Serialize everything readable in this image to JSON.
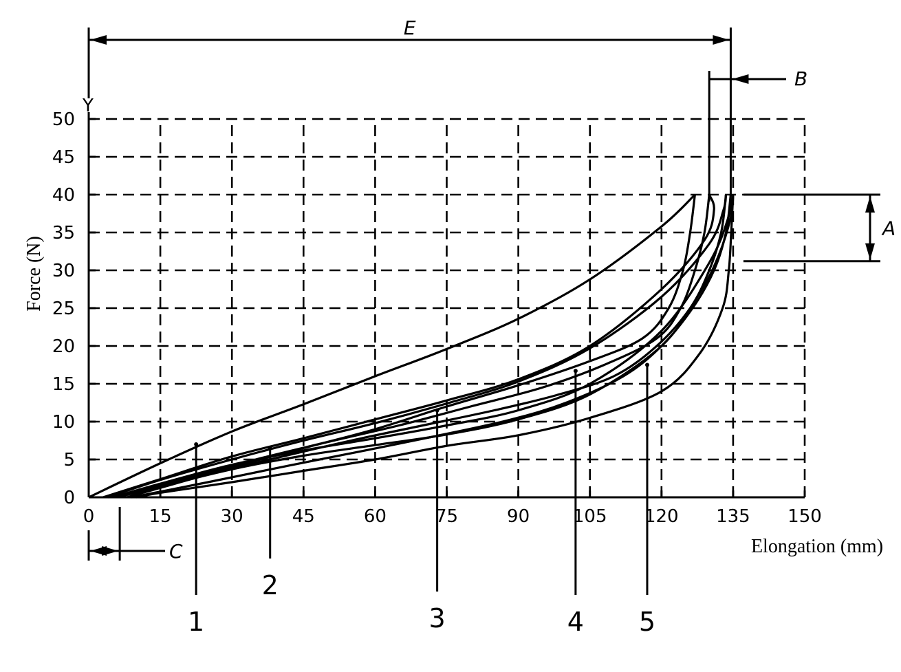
{
  "chart_data": {
    "type": "line",
    "title": "",
    "xlabel": "Elongation (mm)",
    "ylabel": "Force (N)",
    "y_axis_letter": "Y",
    "xlim": [
      0,
      150
    ],
    "ylim": [
      0,
      50
    ],
    "x_ticks": [
      "0",
      "15",
      "30",
      "45",
      "60",
      "75",
      "90",
      "105",
      "120",
      "135",
      "150"
    ],
    "y_ticks": [
      "0",
      "5",
      "10",
      "15",
      "20",
      "25",
      "30",
      "35",
      "40",
      "45",
      "50"
    ],
    "grid": true,
    "legend": "none",
    "series": [
      {
        "label": "1",
        "callout_at": [
          22.5,
          7
        ],
        "loading": [
          [
            0,
            0
          ],
          [
            15,
            4.5
          ],
          [
            30,
            8.7
          ],
          [
            45,
            12.3
          ],
          [
            60,
            16
          ],
          [
            75,
            19.6
          ],
          [
            90,
            23.6
          ],
          [
            105,
            28.8
          ],
          [
            120,
            35.8
          ],
          [
            127,
            40
          ]
        ],
        "unloading": [
          [
            127,
            40
          ],
          [
            126,
            35
          ],
          [
            124.5,
            30
          ],
          [
            121.5,
            25
          ],
          [
            116,
            21
          ],
          [
            105,
            18
          ],
          [
            90,
            14.8
          ],
          [
            75,
            12
          ],
          [
            60,
            9
          ],
          [
            45,
            6.5
          ],
          [
            30,
            4
          ],
          [
            15,
            1.5
          ],
          [
            4,
            0
          ]
        ]
      },
      {
        "label": "2",
        "callout_at": [
          38,
          6.5
        ],
        "loading": [
          [
            3,
            0
          ],
          [
            15,
            2.4
          ],
          [
            30,
            5.4
          ],
          [
            45,
            7.8
          ],
          [
            60,
            10.3
          ],
          [
            75,
            12.8
          ],
          [
            90,
            15.6
          ],
          [
            105,
            20
          ],
          [
            120,
            27.5
          ],
          [
            129,
            34
          ],
          [
            131,
            38
          ],
          [
            130,
            40
          ]
        ],
        "unloading": [
          [
            130,
            40
          ],
          [
            129,
            35
          ],
          [
            127,
            30
          ],
          [
            124,
            25
          ],
          [
            119,
            21
          ],
          [
            108,
            17.5
          ],
          [
            95,
            14.5
          ],
          [
            80,
            12
          ],
          [
            65,
            9.5
          ],
          [
            50,
            7.3
          ],
          [
            35,
            5
          ],
          [
            20,
            2.5
          ],
          [
            6,
            0
          ]
        ]
      },
      {
        "label": "3",
        "callout_at": [
          73,
          11.5
        ],
        "loading": [
          [
            4,
            0
          ],
          [
            15,
            2.3
          ],
          [
            30,
            5
          ],
          [
            45,
            7.5
          ],
          [
            60,
            9.8
          ],
          [
            75,
            12.4
          ],
          [
            90,
            15.3
          ],
          [
            105,
            19.7
          ],
          [
            120,
            26.5
          ],
          [
            130,
            33.5
          ],
          [
            133,
            38
          ],
          [
            133.5,
            40
          ]
        ],
        "unloading": [
          [
            133.5,
            40
          ],
          [
            132.5,
            35
          ],
          [
            130,
            30
          ],
          [
            126,
            25
          ],
          [
            119,
            20
          ],
          [
            110,
            16
          ],
          [
            98,
            13.5
          ],
          [
            85,
            11.5
          ],
          [
            70,
            9.5
          ],
          [
            55,
            7.5
          ],
          [
            40,
            5.3
          ],
          [
            25,
            3
          ],
          [
            8,
            0
          ]
        ]
      },
      {
        "label": "4",
        "callout_at": [
          102,
          16.7
        ],
        "loading": [
          [
            5,
            0
          ],
          [
            15,
            1.8
          ],
          [
            30,
            4.3
          ],
          [
            45,
            6.2
          ],
          [
            60,
            7.8
          ],
          [
            75,
            9.5
          ],
          [
            90,
            11.5
          ],
          [
            105,
            15
          ],
          [
            120,
            22
          ],
          [
            130,
            31
          ],
          [
            134,
            37
          ],
          [
            134.5,
            40
          ]
        ],
        "unloading": [
          [
            134.5,
            40
          ],
          [
            133.5,
            35
          ],
          [
            131,
            30
          ],
          [
            126.5,
            25
          ],
          [
            120,
            20
          ],
          [
            112,
            16
          ],
          [
            100,
            12.5
          ],
          [
            88,
            10.2
          ],
          [
            72,
            8
          ],
          [
            58,
            6.2
          ],
          [
            42,
            4.2
          ],
          [
            25,
            2
          ],
          [
            9,
            0
          ]
        ]
      },
      {
        "label": "5",
        "callout_at": [
          117,
          17.5
        ],
        "loading": [
          [
            6,
            0
          ],
          [
            15,
            1.4
          ],
          [
            30,
            3.7
          ],
          [
            45,
            5.5
          ],
          [
            60,
            6.9
          ],
          [
            75,
            8.3
          ],
          [
            90,
            10.3
          ],
          [
            105,
            13.6
          ],
          [
            120,
            20
          ],
          [
            128,
            27
          ],
          [
            132,
            32
          ],
          [
            134.5,
            37
          ],
          [
            135,
            40
          ]
        ],
        "unloading": [
          [
            135,
            40
          ],
          [
            134.6,
            35
          ],
          [
            134.1,
            30
          ],
          [
            132.8,
            25
          ],
          [
            128,
            19
          ],
          [
            120,
            14
          ],
          [
            105,
            10.5
          ],
          [
            90,
            8.2
          ],
          [
            75,
            6.8
          ],
          [
            60,
            5
          ],
          [
            45,
            3.5
          ],
          [
            30,
            2
          ],
          [
            15,
            0.6
          ],
          [
            10,
            0
          ]
        ]
      }
    ],
    "dimensions": [
      {
        "letter": "E",
        "type": "x-span",
        "from": 0,
        "to": 134.5,
        "y_above": 60.5
      },
      {
        "letter": "B",
        "type": "x-gap",
        "from": 130,
        "to": 134.5,
        "y_above": 55.5
      },
      {
        "letter": "A",
        "type": "y-span",
        "from": 31.2,
        "to": 40
      },
      {
        "letter": "C",
        "type": "x-gap",
        "from": 0,
        "to": 6.5
      }
    ]
  }
}
